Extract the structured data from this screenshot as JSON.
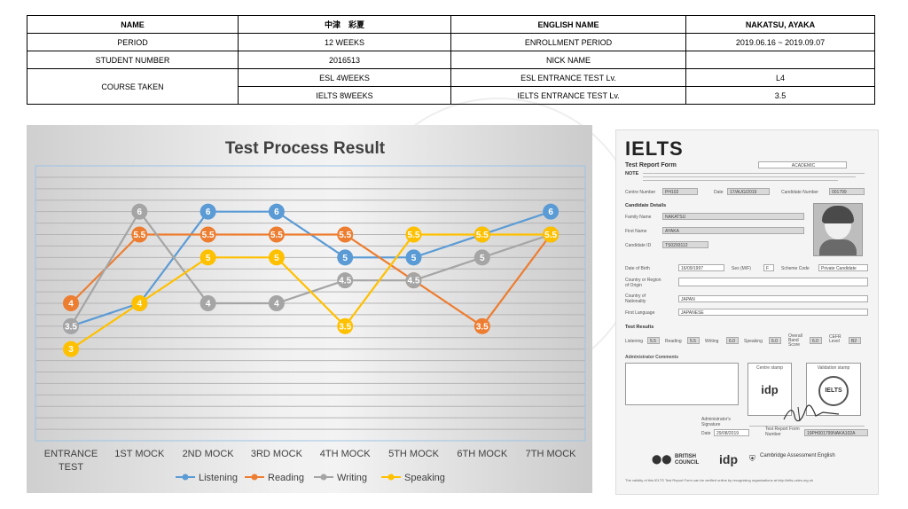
{
  "info_table": {
    "name_label": "NAME",
    "name_value": "中津　彩夏",
    "english_name_label": "ENGLISH NAME",
    "english_name_value": "NAKATSU, AYAKA",
    "period_label": "PERIOD",
    "period_value": "12 WEEKS",
    "enrollment_label": "ENROLLMENT PERIOD",
    "enrollment_value": "2019.06.16 ~ 2019.09.07",
    "student_number_label": "STUDENT NUMBER",
    "student_number_value": "2016513",
    "nick_name_label": "NICK NAME",
    "nick_name_value": "",
    "course_label": "COURSE TAKEN",
    "course_esl": "ESL  4WEEKS",
    "esl_test_label": "ESL ENTRANCE TEST Lv.",
    "esl_test_value": "L4",
    "course_ielts": "IELTS  8WEEKS",
    "ielts_test_label": "IELTS ENTRANCE TEST Lv.",
    "ielts_test_value": "3.5"
  },
  "chart_data": {
    "type": "line",
    "title": "Test Process Result",
    "categories": [
      [
        "ENTRANCE",
        "TEST"
      ],
      [
        "1ST MOCK"
      ],
      [
        "2ND MOCK"
      ],
      [
        "3RD MOCK"
      ],
      [
        "4TH MOCK"
      ],
      [
        "5TH MOCK"
      ],
      [
        "6TH MOCK"
      ],
      [
        "7TH MOCK"
      ]
    ],
    "series": [
      {
        "name": "Listening",
        "color": "#5b9bd5",
        "values": [
          3.5,
          4,
          6,
          6,
          5,
          5,
          5.5,
          6
        ],
        "labels": [
          "3.5",
          "4",
          "6",
          "6",
          "5",
          "5",
          "5.5",
          "6"
        ]
      },
      {
        "name": "Reading",
        "color": "#ed7d31",
        "values": [
          4,
          5.5,
          5.5,
          5.5,
          5.5,
          4.5,
          3.5,
          5.5
        ],
        "labels": [
          "4",
          "5.5",
          "5.5",
          "5.5",
          "5.5",
          "4.5",
          "3.5",
          "5.5"
        ]
      },
      {
        "name": "Writing",
        "color": "#a5a5a5",
        "values": [
          3.5,
          6,
          4,
          4,
          4.5,
          4.5,
          5,
          5.5
        ],
        "labels": [
          "3.5",
          "6",
          "4",
          "4",
          "4.5",
          "4.5",
          "5",
          "5.5"
        ]
      },
      {
        "name": "Speaking",
        "color": "#ffc000",
        "values": [
          3,
          4,
          5,
          5,
          3.5,
          5.5,
          5.5,
          5.5
        ],
        "labels": [
          "3",
          "4",
          "5",
          "5",
          "3.5",
          "5.5",
          "5.5",
          "5.5"
        ]
      }
    ],
    "ylim": [
      1,
      7
    ],
    "grid": true,
    "legend": "bottom"
  },
  "ielts_form": {
    "logo": "IELTS",
    "report_title": "Test Report Form",
    "module": "ACADEMIC",
    "note_label": "NOTE",
    "centre_number_label": "Centre Number",
    "centre_number": "PH102",
    "date_label": "Date",
    "date_value": "17/AUG/2019",
    "candidate_number_label": "Candidate Number",
    "candidate_number": "001799",
    "candidate_details": "Candidate Details",
    "family_name_label": "Family Name",
    "family_name": "NAKATSU",
    "first_name_label": "First Name",
    "first_name": "AYAKA",
    "candidate_id_label": "Candidate ID",
    "candidate_id": "TS0293112",
    "dob_label": "Date of Birth",
    "dob": "16/09/1997",
    "sex_label": "Sex (M/F)",
    "sex": "F",
    "scheme_label": "Scheme Code",
    "scheme": "Private Candidate",
    "country_region_label": "Country or Region of Origin",
    "country_nationality_label": "Country of Nationality",
    "nationality": "JAPAN",
    "first_language_label": "First Language",
    "first_language": "JAPANESE",
    "test_results": "Test Results",
    "listening_label": "Listening",
    "listening": "5.5",
    "reading_label": "Reading",
    "reading": "5.5",
    "writing_label": "Writing",
    "writing": "6.0",
    "speaking_label": "Speaking",
    "speaking": "6.0",
    "overall_label": "Overall Band Score",
    "overall": "6.0",
    "cefr_label": "CEFR Level",
    "cefr": "B2",
    "admin_comments": "Administrator Comments",
    "centre_stamp": "Centre stamp",
    "validation_stamp": "Validation stamp",
    "idp_stamp": "idp",
    "ielts_stamp": "IELTS",
    "admin_signature_label": "Administrator's Signature",
    "date2_label": "Date",
    "date2": "29/08/2019",
    "trf_number_label": "Test Report Form Number",
    "trf_number": "19PH001799NAKA102A",
    "british_council": "BRITISH COUNCIL",
    "idp_logo": "idp",
    "cambridge": "Cambridge Assessment English",
    "validity_note": "The validity of this IELTS Test Report Form can be verified online by recognising organisations at http://ielts.ucles.org.uk"
  }
}
